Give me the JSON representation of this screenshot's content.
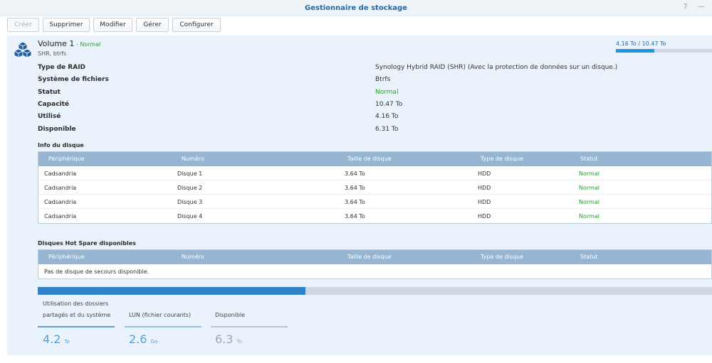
{
  "window": {
    "title": "Gestionnaire de stockage",
    "help_glyph": "?",
    "minimize_glyph": "—"
  },
  "toolbar": {
    "create": "Créer",
    "delete": "Supprimer",
    "modify": "Modifier",
    "manage": "Gérer",
    "configure": "Configurer"
  },
  "volume": {
    "name": "Volume 1",
    "status_suffix": " - Normal",
    "subtitle": "SHR, btrfs",
    "usage_text": "4.16 To / 10.47 To",
    "usage_fraction": 0.397,
    "icon": "cubes-icon"
  },
  "properties": [
    {
      "label": "Type de RAID",
      "value": "Synology Hybrid RAID (SHR) (Avec la protection de données sur un disque.)"
    },
    {
      "label": "Système de fichiers",
      "value": "Btrfs"
    },
    {
      "label": "Statut",
      "value": "Normal"
    },
    {
      "label": "Capacité",
      "value": "10.47 To"
    },
    {
      "label": "Utilisé",
      "value": "4.16 To"
    },
    {
      "label": "Disponible",
      "value": "6.31 To"
    }
  ],
  "disk_info": {
    "title": "Info du disque",
    "columns": [
      "Périphérique",
      "Numéro",
      "Taille de disque",
      "Type de disque",
      "Statut"
    ],
    "rows": [
      [
        "Cadsandria",
        "Disque 1",
        "3.64 To",
        "HDD",
        "Normal"
      ],
      [
        "Cadsandria",
        "Disque 2",
        "3.64 To",
        "HDD",
        "Normal"
      ],
      [
        "Cadsandria",
        "Disque 3",
        "3.64 To",
        "HDD",
        "Normal"
      ],
      [
        "Cadsandria",
        "Disque 4",
        "3.64 To",
        "HDD",
        "Normal"
      ]
    ]
  },
  "hot_spare": {
    "title": "Disques Hot Spare disponibles",
    "columns": [
      "Périphérique",
      "Numéro",
      "Taille de disque",
      "Type de disque",
      "Statut"
    ],
    "empty_text": "Pas de disque de secours disponible."
  },
  "capacity_breakdown": {
    "shared_fraction": 0.397,
    "lun_fraction": 0.0,
    "shared_label_line1": "Utilisation des dossiers",
    "shared_label_line2": "partagés et du système",
    "shared_value": "4.2",
    "shared_unit": "To",
    "lun_label": "LUN (fichier courants)",
    "lun_value": "2.6",
    "lun_unit": "Go",
    "available_label": "Disponible",
    "available_value": "6.3",
    "available_unit": "To"
  },
  "colors": {
    "accent": "#1f6aa8",
    "ok": "#2e9b30",
    "header": "#95b5d2",
    "bar": "#3282ca",
    "shared_line": "#5a9fd0",
    "lun_line": "#8fc4e4",
    "available_line": "#b9c4cf"
  }
}
